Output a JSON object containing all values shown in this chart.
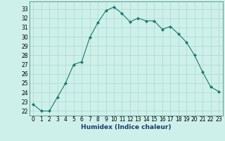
{
  "x": [
    0,
    1,
    2,
    3,
    4,
    5,
    6,
    7,
    8,
    9,
    10,
    11,
    12,
    13,
    14,
    15,
    16,
    17,
    18,
    19,
    20,
    21,
    22,
    23
  ],
  "y": [
    22.7,
    22.0,
    22.0,
    23.5,
    25.0,
    27.0,
    27.3,
    29.9,
    31.5,
    32.8,
    33.2,
    32.5,
    31.6,
    32.0,
    31.7,
    31.7,
    30.8,
    31.1,
    30.3,
    29.4,
    28.0,
    26.2,
    24.6,
    24.1
  ],
  "line_color": "#1a7a6a",
  "marker": "D",
  "markersize": 2.0,
  "bg_color": "#cef0ea",
  "grid_color": "#aad8d0",
  "xlabel": "Humidex (Indice chaleur)",
  "ylim": [
    21.5,
    33.8
  ],
  "xlim": [
    -0.5,
    23.5
  ],
  "yticks": [
    22,
    23,
    24,
    25,
    26,
    27,
    28,
    29,
    30,
    31,
    32,
    33
  ],
  "xticks": [
    0,
    1,
    2,
    3,
    4,
    5,
    6,
    7,
    8,
    9,
    10,
    11,
    12,
    13,
    14,
    15,
    16,
    17,
    18,
    19,
    20,
    21,
    22,
    23
  ],
  "tick_fontsize": 5.5,
  "xlabel_fontsize": 6.5,
  "xlabel_color": "#1a3a6a",
  "linewidth": 0.8
}
